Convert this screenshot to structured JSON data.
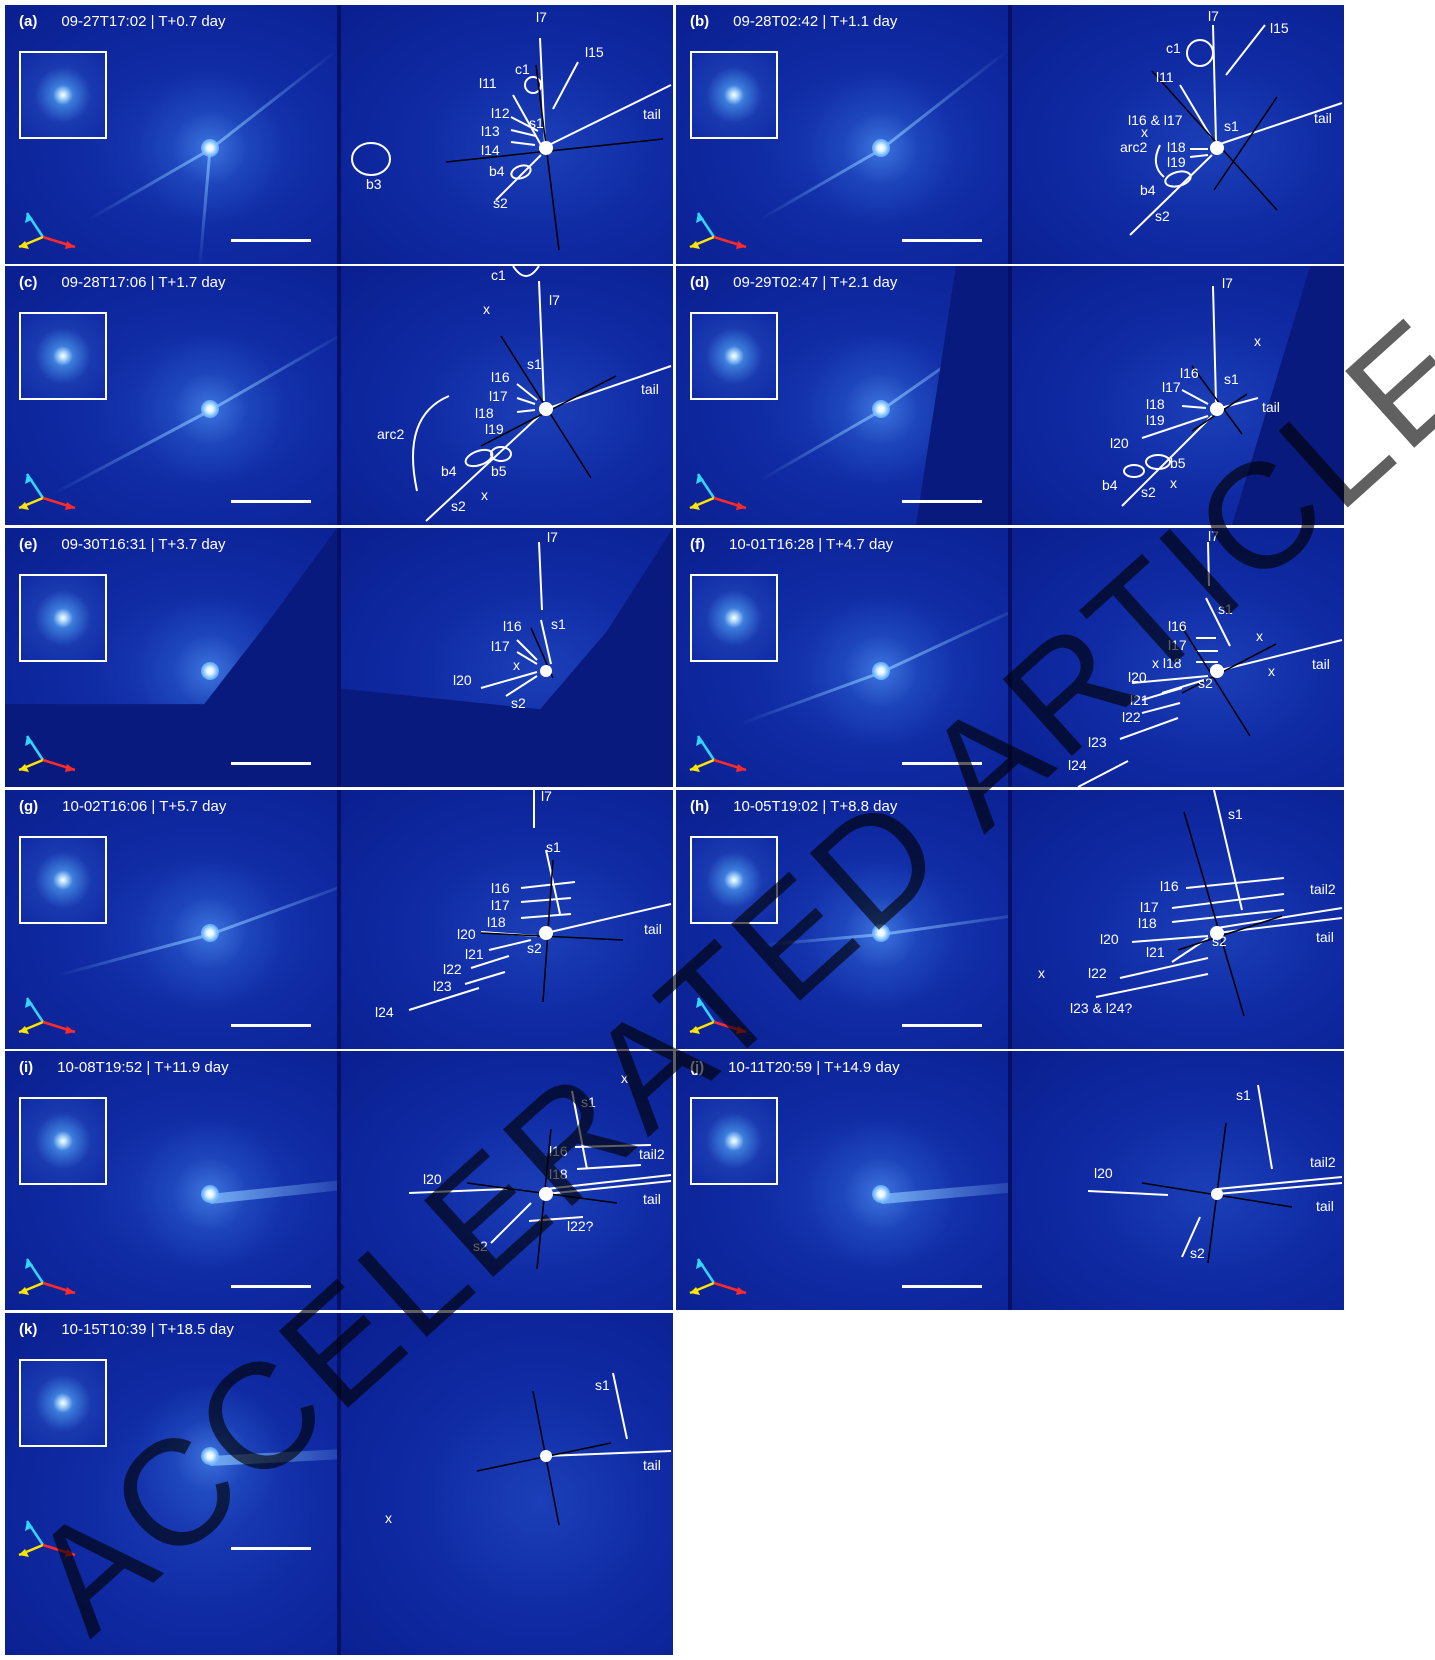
{
  "figure": {
    "watermark": "ACCELERATED ARTICLE PREVIEW",
    "panels": [
      {
        "label": "(a)",
        "date": "09-27T17:02",
        "time": "T+0.7 day",
        "annotations": [
          "c1",
          "l7",
          "l15",
          "l11",
          "l12",
          "l13",
          "l14",
          "s1",
          "tail",
          "b4",
          "s2",
          "b3"
        ]
      },
      {
        "label": "(b)",
        "date": "09-28T02:42",
        "time": "T+1.1 day",
        "annotations": [
          "l7",
          "l15",
          "c1",
          "l11",
          "l16 & l17",
          "x",
          "arc2",
          "l18",
          "l19",
          "s1",
          "tail",
          "b4",
          "s2"
        ]
      },
      {
        "label": "(c)",
        "date": "09-28T17:06",
        "time": "T+1.7 day",
        "annotations": [
          "c1",
          "l7",
          "x",
          "s1",
          "l16",
          "l17",
          "l18",
          "l19",
          "tail",
          "arc2",
          "b4",
          "b5",
          "s2",
          "x"
        ]
      },
      {
        "label": "(d)",
        "date": "09-29T02:47",
        "time": "T+2.1 day",
        "annotations": [
          "l7",
          "x",
          "l16",
          "l17",
          "s1",
          "l18",
          "l19",
          "tail",
          "l20",
          "b5",
          "b4",
          "s2",
          "x"
        ]
      },
      {
        "label": "(e)",
        "date": "09-30T16:31",
        "time": "T+3.7 day",
        "annotations": [
          "l7",
          "l16",
          "s1",
          "l17",
          "x",
          "l20",
          "s2"
        ]
      },
      {
        "label": "(f)",
        "date": "10-01T16:28",
        "time": "T+4.7 day",
        "annotations": [
          "l7",
          "s1",
          "l16",
          "l17",
          "x",
          "x l18",
          "x",
          "tail",
          "l20",
          "s2",
          "l21",
          "l22",
          "l23",
          "l24"
        ]
      },
      {
        "label": "(g)",
        "date": "10-02T16:06",
        "time": "T+5.7 day",
        "annotations": [
          "l7",
          "s1",
          "l16",
          "l17",
          "l18",
          "l20",
          "tail",
          "l21",
          "s2",
          "l22",
          "l23",
          "l24"
        ]
      },
      {
        "label": "(h)",
        "date": "10-05T19:02",
        "time": "T+8.8 day",
        "annotations": [
          "s1",
          "l16",
          "tail2",
          "l17",
          "l18",
          "l20",
          "s2",
          "tail",
          "l21",
          "x",
          "l22",
          "l23 & l24?"
        ]
      },
      {
        "label": "(i)",
        "date": "10-08T19:52",
        "time": "T+11.9 day",
        "annotations": [
          "x",
          "s1",
          "l16",
          "tail2",
          "l18",
          "l20",
          "tail",
          "l22?",
          "s2"
        ]
      },
      {
        "label": "(j)",
        "date": "10-11T20:59",
        "time": "T+14.9 day",
        "annotations": [
          "s1",
          "tail2",
          "l20",
          "tail",
          "s2"
        ]
      },
      {
        "label": "(k)",
        "date": "10-15T10:39",
        "time": "T+18.5 day",
        "annotations": [
          "s1",
          "tail",
          "x"
        ]
      }
    ]
  }
}
